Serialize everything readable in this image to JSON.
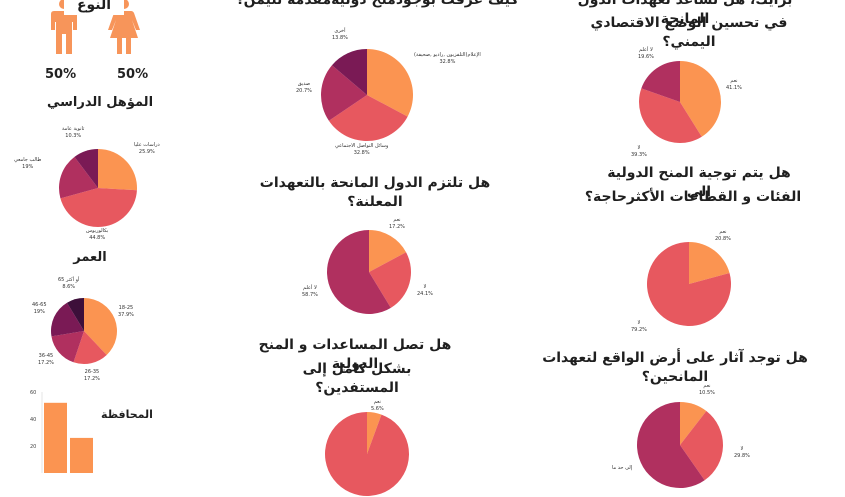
{
  "colors": {
    "orange": "#FB9451",
    "coral": "#E7585F",
    "magenta": "#B0305F",
    "purple": "#5A1448",
    "male": "#F7955A",
    "female": "#F7955A"
  },
  "gender": {
    "title": "النوع",
    "male_pct": "50%",
    "female_pct": "50%",
    "icons": [
      "male-icon",
      "female-icon"
    ]
  },
  "titles": {
    "education": "المؤهل الدراسي",
    "age": "العمر",
    "province": "المحافظة",
    "how_known": "كيف عرفت بوجودمنح دوليةمقدمة لليمن؟",
    "commit": "هل تلتزم الدول المانحة بالتعهدات المعلنة؟",
    "reach_1": "هل تصل المساعدات و المنح الدولية",
    "reach_2": "بشكل كامل إلى المستفدين؟",
    "help_1": "برايك، هل تساعد تعهدات الدول المانحة",
    "help_2": "في تحسين الوضع الاقتصادي اليمني؟",
    "direct_1": "هل يتم توجية المنح الدولية إلى",
    "direct_2": "الفئات و القطاعات الأكثرحاجة؟",
    "impact": "هل توجد آثار على أرض الواقع لتعهدات المانحين؟"
  },
  "chart_data": [
    {
      "id": "education",
      "type": "pie",
      "slices": [
        {
          "label": "دراسات عليا",
          "value": 25.9,
          "text": "25.9%",
          "color": "#FB9451"
        },
        {
          "label": "بكالوريوس",
          "value": 44.8,
          "text": "44.8%",
          "color": "#E7585F"
        },
        {
          "label": "طالب جامعي",
          "value": 19,
          "text": "19%",
          "color": "#B0305F"
        },
        {
          "label": "ثانوية عامة",
          "value": 10.3,
          "text": "10.3%",
          "color": "#7A1A55"
        }
      ]
    },
    {
      "id": "age",
      "type": "pie",
      "slices": [
        {
          "label": "18-25",
          "value": 37.9,
          "text": "37.9%",
          "color": "#FB9451"
        },
        {
          "label": "26-35",
          "value": 17.2,
          "text": "17.2%",
          "color": "#E7585F"
        },
        {
          "label": "36-45",
          "value": 17.2,
          "text": "17.2%",
          "color": "#B0305F"
        },
        {
          "label": "46-65",
          "value": 19,
          "text": "19%",
          "color": "#7A1A55"
        },
        {
          "label": "65 أو أكثر",
          "value": 8.6,
          "text": "8.6%",
          "color": "#3D0F3A"
        }
      ]
    },
    {
      "id": "province",
      "type": "bar",
      "y_ticks": [
        "60",
        "40",
        "20"
      ],
      "ylim": [
        0,
        60
      ],
      "values": [
        52,
        26
      ],
      "color": "#FB9451"
    },
    {
      "id": "how_known",
      "type": "pie",
      "slices": [
        {
          "label": "الإعلام(التلفزيون ,راديو ,صحيفة)",
          "value": 32.8,
          "text": "32.8%",
          "color": "#FB9451"
        },
        {
          "label": "وسائل التواصل الاجتماعي",
          "value": 32.8,
          "text": "32.8%",
          "color": "#E7585F"
        },
        {
          "label": "صديق",
          "value": 20.7,
          "text": "20.7%",
          "color": "#B0305F"
        },
        {
          "label": "أخرى",
          "value": 13.8,
          "text": "13.8%",
          "color": "#7A1A55"
        }
      ]
    },
    {
      "id": "commit",
      "type": "pie",
      "slices": [
        {
          "label": "نعم",
          "value": 17.2,
          "text": "17.2%",
          "color": "#FB9451"
        },
        {
          "label": "لا",
          "value": 24.1,
          "text": "24.1%",
          "color": "#E7585F"
        },
        {
          "label": "لا أعلم",
          "value": 58.7,
          "text": "58.7%",
          "color": "#B0305F"
        }
      ]
    },
    {
      "id": "reach",
      "type": "pie",
      "slices": [
        {
          "label": "نعم",
          "value": 5.6,
          "text": "5.6%",
          "color": "#FB9451"
        },
        {
          "label": "لا",
          "value": 94.4,
          "text": "",
          "color": "#E7585F"
        }
      ]
    },
    {
      "id": "help",
      "type": "pie",
      "slices": [
        {
          "label": "نعم",
          "value": 41.1,
          "text": "41.1%",
          "color": "#FB9451"
        },
        {
          "label": "لا",
          "value": 39.3,
          "text": "39.3%",
          "color": "#E7585F"
        },
        {
          "label": "لا أعلم",
          "value": 19.6,
          "text": "19.6%",
          "color": "#B0305F"
        }
      ]
    },
    {
      "id": "direct",
      "type": "pie",
      "slices": [
        {
          "label": "نعم",
          "value": 20.8,
          "text": "20.8%",
          "color": "#FB9451"
        },
        {
          "label": "لا",
          "value": 79.2,
          "text": "79.2%",
          "color": "#E7585F"
        }
      ]
    },
    {
      "id": "impact",
      "type": "pie",
      "slices": [
        {
          "label": "نعم",
          "value": 10.5,
          "text": "10.5%",
          "color": "#FB9451"
        },
        {
          "label": "لا",
          "value": 29.8,
          "text": "29.8%",
          "color": "#E7585F"
        },
        {
          "label": "إلى حد ما",
          "value": 59.7,
          "text": "",
          "color": "#B0305F"
        }
      ]
    }
  ]
}
